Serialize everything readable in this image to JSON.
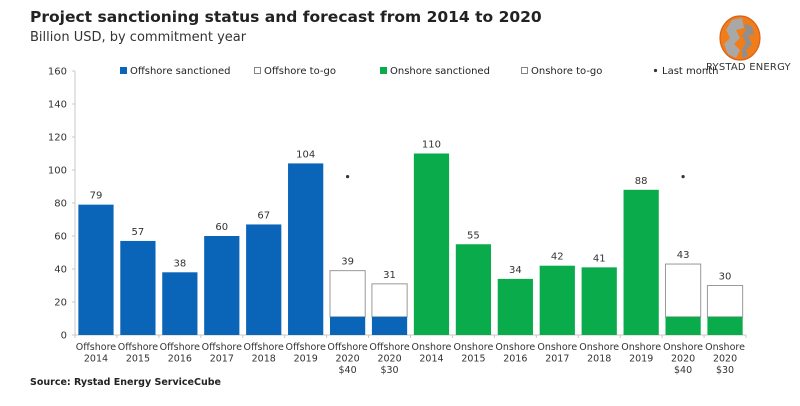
{
  "header": {
    "title": "Project sanctioning status and forecast from 2014 to 2020",
    "subtitle": "Billion USD, by commitment year"
  },
  "brand": {
    "name": "RYSTAD ENERGY",
    "logo_icon": "globe-logo-icon",
    "logo_colors": [
      "#f07c1a",
      "#9a9a9a"
    ]
  },
  "footer": {
    "source": "Source: Rystad Energy ServiceCube"
  },
  "colors": {
    "offshore": "#0a64b8",
    "onshore": "#0aab4b",
    "togo_fill": "#ffffff",
    "togo_stroke": "#999999"
  },
  "chart_data": {
    "type": "bar",
    "stacked": true,
    "title": "Project sanctioning status and forecast from 2014 to 2020",
    "subtitle": "Billion USD, by commitment year",
    "xlabel": "",
    "ylabel": "",
    "ylim": [
      0,
      160
    ],
    "yticks": [
      0,
      20,
      40,
      60,
      80,
      100,
      120,
      140,
      160
    ],
    "grid": false,
    "legend_position": "top",
    "legend": [
      {
        "name": "Offshore sanctioned",
        "marker": "filled-square",
        "color": "#0a64b8"
      },
      {
        "name": "Offshore to-go",
        "marker": "hollow-square",
        "color": "#ffffff"
      },
      {
        "name": "Onshore sanctioned",
        "marker": "filled-square",
        "color": "#0aab4b"
      },
      {
        "name": "Onshore to-go",
        "marker": "hollow-square",
        "color": "#ffffff"
      },
      {
        "name": "Last month",
        "marker": "dot",
        "color": "#333333"
      }
    ],
    "categories": [
      [
        "Offshore",
        "2014"
      ],
      [
        "Offshore",
        "2015"
      ],
      [
        "Offshore",
        "2016"
      ],
      [
        "Offshore",
        "2017"
      ],
      [
        "Offshore",
        "2018"
      ],
      [
        "Offshore",
        "2019"
      ],
      [
        "Offshore",
        "2020",
        "$40"
      ],
      [
        "Offshore",
        "2020",
        "$30"
      ],
      [
        "Onshore",
        "2014"
      ],
      [
        "Onshore",
        "2015"
      ],
      [
        "Onshore",
        "2016"
      ],
      [
        "Onshore",
        "2017"
      ],
      [
        "Onshore",
        "2018"
      ],
      [
        "Onshore",
        "2019"
      ],
      [
        "Onshore",
        "2020",
        "$40"
      ],
      [
        "Onshore",
        "2020",
        "$30"
      ]
    ],
    "group": [
      "offshore",
      "offshore",
      "offshore",
      "offshore",
      "offshore",
      "offshore",
      "offshore",
      "offshore",
      "onshore",
      "onshore",
      "onshore",
      "onshore",
      "onshore",
      "onshore",
      "onshore",
      "onshore"
    ],
    "series": [
      {
        "name": "Sanctioned",
        "values": [
          79,
          57,
          38,
          60,
          67,
          104,
          11,
          11,
          110,
          55,
          34,
          42,
          41,
          88,
          11,
          11
        ]
      },
      {
        "name": "To-go",
        "values": [
          0,
          0,
          0,
          0,
          0,
          0,
          28,
          20,
          0,
          0,
          0,
          0,
          0,
          0,
          32,
          19
        ]
      }
    ],
    "totals": [
      79,
      57,
      38,
      60,
      67,
      104,
      39,
      31,
      110,
      55,
      34,
      42,
      41,
      88,
      43,
      30
    ],
    "last_month": [
      null,
      null,
      null,
      null,
      null,
      null,
      96,
      null,
      null,
      null,
      null,
      null,
      null,
      null,
      96,
      null
    ]
  }
}
